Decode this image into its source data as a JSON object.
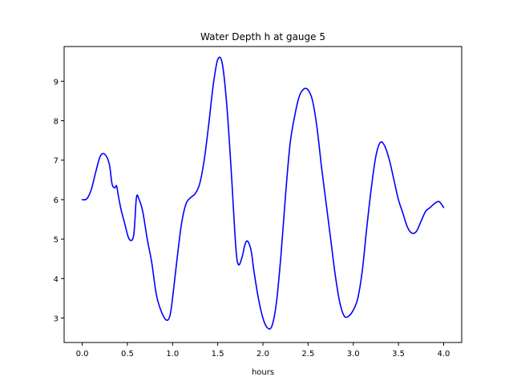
{
  "chart_data": {
    "type": "line",
    "title": "Water Depth h at gauge 5",
    "xlabel": "hours",
    "ylabel": "",
    "xlim": [
      -0.2,
      4.2
    ],
    "ylim": [
      2.38,
      9.88
    ],
    "xticks": [
      0.0,
      0.5,
      1.0,
      1.5,
      2.0,
      2.5,
      3.0,
      3.5,
      4.0
    ],
    "xtick_labels": [
      "0.0",
      "0.5",
      "1.0",
      "1.5",
      "2.0",
      "2.5",
      "3.0",
      "3.5",
      "4.0"
    ],
    "yticks": [
      3,
      4,
      5,
      6,
      7,
      8,
      9
    ],
    "ytick_labels": [
      "3",
      "4",
      "5",
      "6",
      "7",
      "8",
      "9"
    ],
    "grid": false,
    "series": [
      {
        "color": "#0000ff",
        "x": [
          0.0,
          0.05,
          0.1,
          0.15,
          0.2,
          0.25,
          0.3,
          0.33,
          0.36,
          0.38,
          0.4,
          0.43,
          0.47,
          0.52,
          0.57,
          0.6,
          0.63,
          0.67,
          0.72,
          0.77,
          0.82,
          0.87,
          0.93,
          0.97,
          1.0,
          1.05,
          1.1,
          1.15,
          1.2,
          1.25,
          1.3,
          1.35,
          1.4,
          1.45,
          1.5,
          1.55,
          1.6,
          1.65,
          1.7,
          1.73,
          1.77,
          1.8,
          1.83,
          1.87,
          1.9,
          1.95,
          2.0,
          2.05,
          2.1,
          2.15,
          2.2,
          2.25,
          2.3,
          2.35,
          2.4,
          2.45,
          2.5,
          2.55,
          2.6,
          2.65,
          2.7,
          2.75,
          2.8,
          2.85,
          2.9,
          2.95,
          3.0,
          3.05,
          3.1,
          3.15,
          3.2,
          3.25,
          3.3,
          3.35,
          3.4,
          3.45,
          3.5,
          3.55,
          3.6,
          3.65,
          3.7,
          3.75,
          3.8,
          3.85,
          3.9,
          3.95,
          4.0
        ],
        "y": [
          6.0,
          6.02,
          6.25,
          6.7,
          7.1,
          7.15,
          6.9,
          6.4,
          6.3,
          6.35,
          6.1,
          5.75,
          5.4,
          5.0,
          5.1,
          6.05,
          6.0,
          5.7,
          5.0,
          4.4,
          3.6,
          3.2,
          2.95,
          3.05,
          3.5,
          4.5,
          5.4,
          5.9,
          6.05,
          6.15,
          6.4,
          7.0,
          7.9,
          8.9,
          9.55,
          9.45,
          8.4,
          6.7,
          4.8,
          4.35,
          4.55,
          4.85,
          4.95,
          4.7,
          4.2,
          3.5,
          3.0,
          2.75,
          2.8,
          3.4,
          4.6,
          6.1,
          7.4,
          8.1,
          8.6,
          8.8,
          8.78,
          8.5,
          7.8,
          6.8,
          5.9,
          5.0,
          4.1,
          3.4,
          3.05,
          3.05,
          3.2,
          3.5,
          4.2,
          5.3,
          6.3,
          7.1,
          7.45,
          7.35,
          7.0,
          6.5,
          6.0,
          5.65,
          5.3,
          5.15,
          5.2,
          5.45,
          5.7,
          5.8,
          5.9,
          5.95,
          5.8
        ]
      }
    ]
  }
}
